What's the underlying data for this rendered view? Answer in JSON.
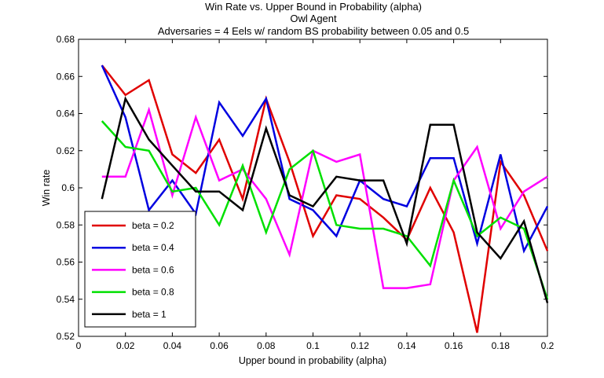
{
  "chart_data": {
    "type": "line",
    "title": "Win Rate vs. Upper Bound in Probability (alpha)",
    "subtitle": "Owl Agent",
    "subtitle2": "Adversaries = 4 Eels w/ random BS probability between 0.05 and 0.5",
    "xlabel": "Upper bound in probability (alpha)",
    "ylabel": "Win rate",
    "xlim": [
      0,
      0.2
    ],
    "ylim": [
      0.52,
      0.68
    ],
    "xticks": [
      "0",
      "0.02",
      "0.04",
      "0.06",
      "0.08",
      "0.1",
      "0.12",
      "0.14",
      "0.16",
      "0.18",
      "0.2"
    ],
    "yticks": [
      "0.52",
      "0.54",
      "0.56",
      "0.58",
      "0.6",
      "0.62",
      "0.64",
      "0.66",
      "0.68"
    ],
    "grid": false,
    "legend_position": "bottom-left",
    "x": [
      0.01,
      0.02,
      0.03,
      0.04,
      0.05,
      0.06,
      0.07,
      0.08,
      0.09,
      0.1,
      0.11,
      0.12,
      0.13,
      0.14,
      0.15,
      0.16,
      0.17,
      0.18,
      0.19,
      0.2
    ],
    "series": [
      {
        "name": "beta = 0.2",
        "color": "#e00000",
        "values": [
          0.666,
          0.65,
          0.658,
          0.618,
          0.608,
          0.626,
          0.594,
          0.648,
          0.614,
          0.574,
          0.596,
          0.594,
          0.584,
          0.572,
          0.6,
          0.576,
          0.522,
          0.614,
          0.596,
          0.566
        ]
      },
      {
        "name": "beta = 0.4",
        "color": "#0000e0",
        "values": [
          0.666,
          0.638,
          0.588,
          0.604,
          0.586,
          0.646,
          0.628,
          0.648,
          0.594,
          0.588,
          0.574,
          0.604,
          0.594,
          0.59,
          0.616,
          0.616,
          0.57,
          0.618,
          0.566,
          0.59
        ]
      },
      {
        "name": "beta = 0.6",
        "color": "#ff00ff",
        "values": [
          0.606,
          0.606,
          0.642,
          0.596,
          0.638,
          0.604,
          0.61,
          0.594,
          0.564,
          0.62,
          0.614,
          0.618,
          0.546,
          0.546,
          0.548,
          0.604,
          0.622,
          0.578,
          0.598,
          0.606
        ]
      },
      {
        "name": "beta = 0.8",
        "color": "#00e000",
        "values": [
          0.636,
          0.622,
          0.62,
          0.598,
          0.6,
          0.58,
          0.612,
          0.576,
          0.61,
          0.62,
          0.58,
          0.578,
          0.578,
          0.574,
          0.558,
          0.604,
          0.574,
          0.584,
          0.578,
          0.54
        ]
      },
      {
        "name": "beta = 1",
        "color": "#000000",
        "values": [
          0.594,
          0.648,
          0.626,
          0.612,
          0.598,
          0.598,
          0.588,
          0.632,
          0.596,
          0.59,
          0.606,
          0.604,
          0.604,
          0.57,
          0.634,
          0.634,
          0.576,
          0.562,
          0.582,
          0.538
        ]
      }
    ]
  }
}
